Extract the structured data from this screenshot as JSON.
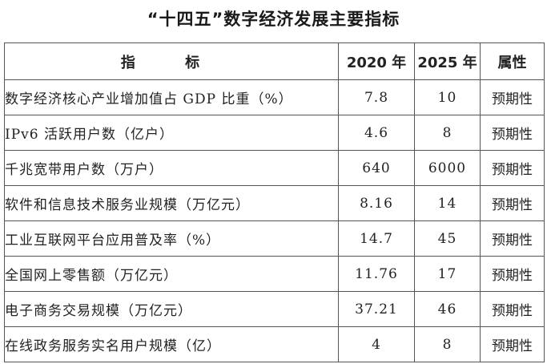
{
  "title": "“十四五”数字经济发展主要指标",
  "table": {
    "headers": {
      "name": "指 标",
      "y2020": "2020 年",
      "y2025": "2025 年",
      "attr": "属性"
    },
    "rows": [
      {
        "name": "数字经济核心产业增加值占 GDP 比重（%）",
        "y2020": "7.8",
        "y2025": "10",
        "attr": "预期性"
      },
      {
        "name": "IPv6 活跃用户数（亿户）",
        "y2020": "4.6",
        "y2025": "8",
        "attr": "预期性"
      },
      {
        "name": "千兆宽带用户数（万户）",
        "y2020": "640",
        "y2025": "6000",
        "attr": "预期性"
      },
      {
        "name": "软件和信息技术服务业规模（万亿元）",
        "y2020": "8.16",
        "y2025": "14",
        "attr": "预期性"
      },
      {
        "name": "工业互联网平台应用普及率（%）",
        "y2020": "14.7",
        "y2025": "45",
        "attr": "预期性"
      },
      {
        "name": "全国网上零售额（万亿元）",
        "y2020": "11.76",
        "y2025": "17",
        "attr": "预期性"
      },
      {
        "name": "电子商务交易规模（万亿元）",
        "y2020": "37.21",
        "y2025": "46",
        "attr": "预期性"
      },
      {
        "name": "在线政务服务实名用户规模（亿）",
        "y2020": "4",
        "y2025": "8",
        "attr": "预期性"
      }
    ]
  }
}
